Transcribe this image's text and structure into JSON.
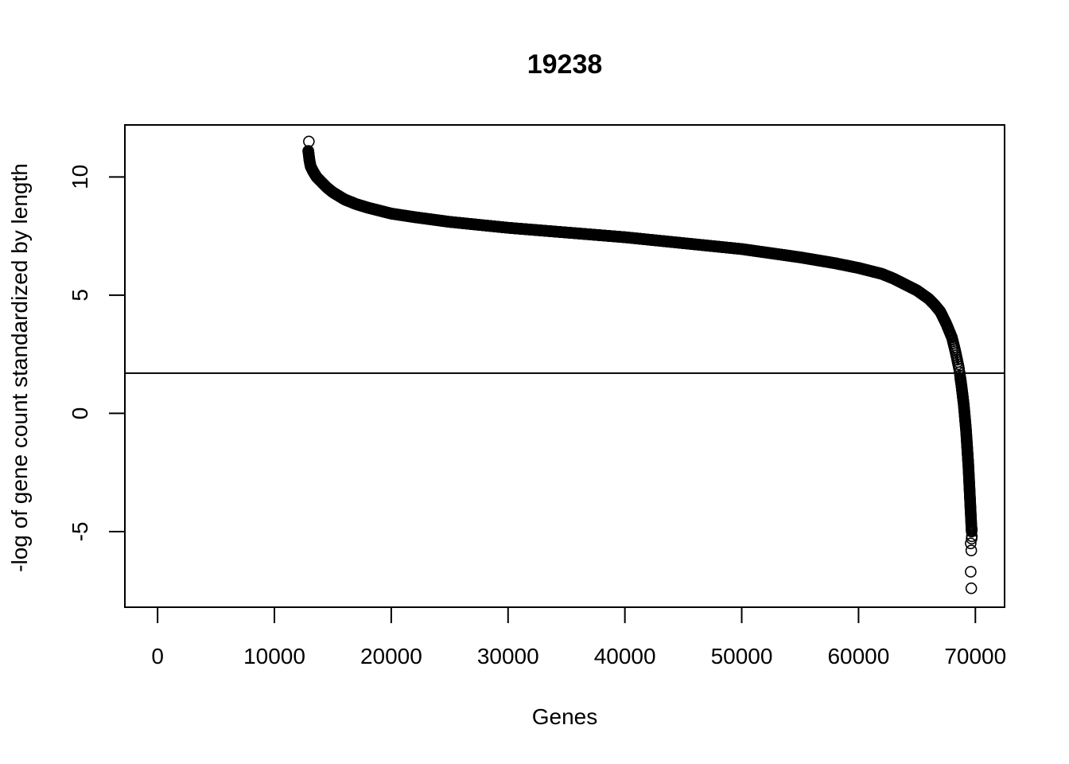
{
  "chart_data": {
    "type": "scatter",
    "title": "19238",
    "xlabel": "Genes",
    "ylabel": "-log of gene count standardized by length",
    "xlim": [
      -2800,
      72500
    ],
    "ylim": [
      -8.2,
      12.2
    ],
    "x_ticks": [
      0,
      10000,
      20000,
      30000,
      40000,
      50000,
      60000,
      70000
    ],
    "x_tick_labels": [
      "0",
      "10000",
      "20000",
      "30000",
      "40000",
      "50000",
      "60000",
      "70000"
    ],
    "y_ticks": [
      -5,
      0,
      5,
      10
    ],
    "y_tick_labels": [
      "-5",
      "0",
      "5",
      "10"
    ],
    "hline": 1.7,
    "grid": false,
    "legend": "none",
    "marker": "open-circle",
    "x_start": 12900,
    "x_end": 69700,
    "curve_x": [
      12900,
      12950,
      13000,
      13100,
      13300,
      13600,
      14000,
      14500,
      15000,
      16000,
      17000,
      18000,
      20000,
      22000,
      25000,
      30000,
      35000,
      40000,
      45000,
      50000,
      55000,
      58000,
      60000,
      62000,
      63000,
      64000,
      65000,
      66000,
      66500,
      67000,
      67500,
      68000,
      68300,
      68600,
      68800,
      69000,
      69200,
      69400,
      69500,
      69600,
      69650,
      69700
    ],
    "curve_y": [
      11.1,
      10.9,
      10.7,
      10.45,
      10.25,
      10.0,
      9.8,
      9.55,
      9.35,
      9.05,
      8.85,
      8.7,
      8.45,
      8.3,
      8.1,
      7.85,
      7.65,
      7.45,
      7.2,
      6.95,
      6.6,
      6.35,
      6.15,
      5.9,
      5.7,
      5.45,
      5.2,
      4.85,
      4.6,
      4.3,
      3.8,
      3.2,
      2.6,
      1.9,
      1.2,
      0.4,
      -0.7,
      -2.2,
      -3.2,
      -4.2,
      -4.7,
      -5.2
    ],
    "outliers": [
      {
        "x": 12950,
        "y": 11.5
      },
      {
        "x": 69600,
        "y": -5.5
      },
      {
        "x": 69650,
        "y": -5.8
      },
      {
        "x": 69600,
        "y": -6.7
      },
      {
        "x": 69650,
        "y": -7.4
      },
      {
        "x": 69700,
        "y": -4.9
      },
      {
        "x": 69680,
        "y": -5.3
      }
    ]
  }
}
